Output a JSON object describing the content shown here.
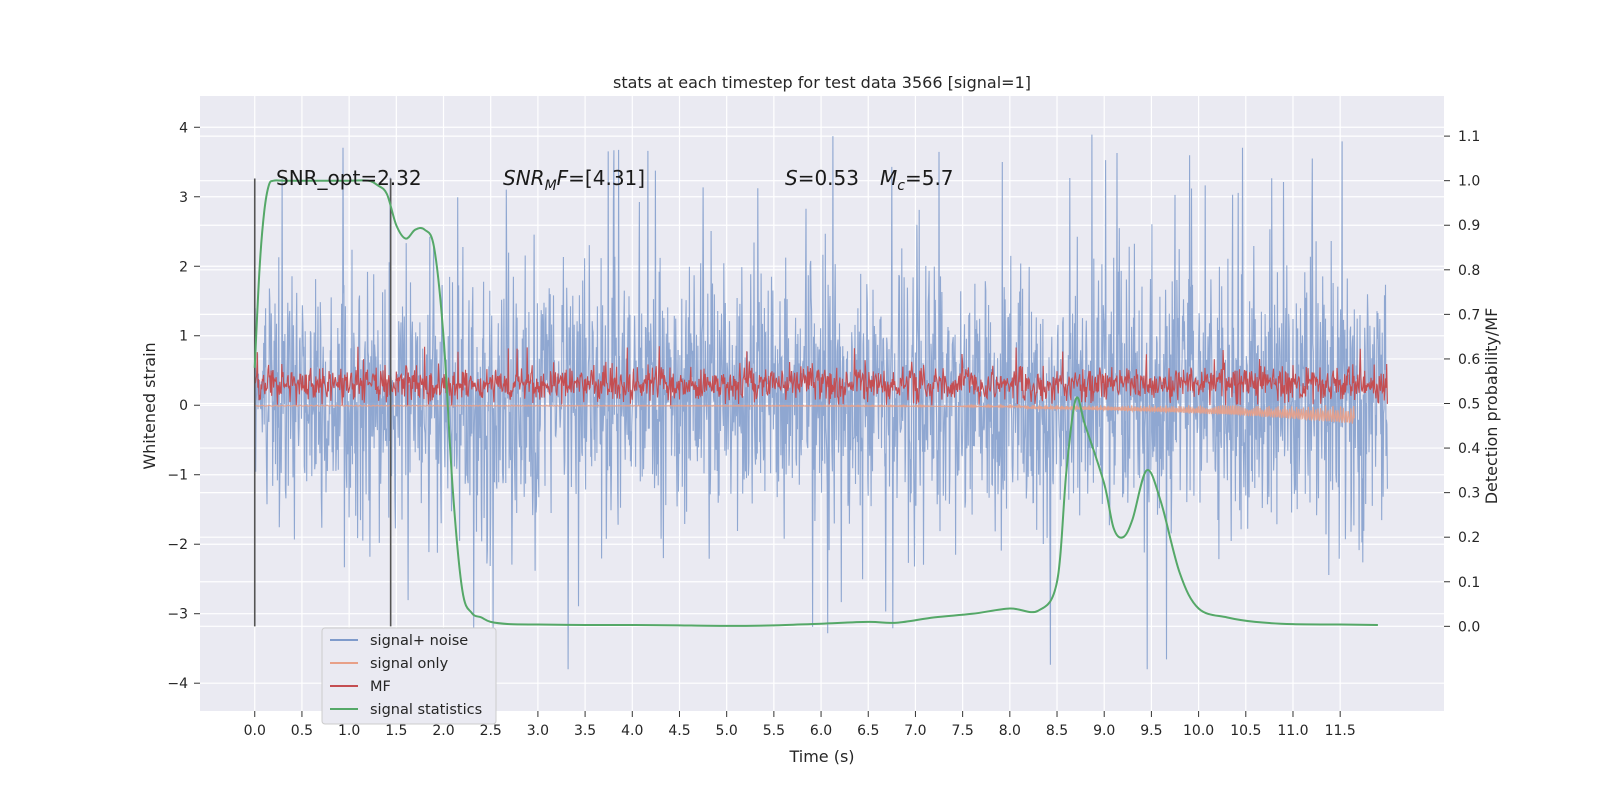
{
  "chart_data": {
    "type": "line",
    "title": "stats at each timestep for test data 3566 [signal=1]",
    "xlabel": "Time (s)",
    "ylabel_left": "Whitened strain",
    "ylabel_right": "Detection probability/MF",
    "xlim": [
      -0.58,
      12.6
    ],
    "ylim_left": [
      -4.4,
      4.45
    ],
    "ylim_right": [
      -0.19,
      1.19
    ],
    "x_ticks": [
      "0.0",
      "0.5",
      "1.0",
      "1.5",
      "2.0",
      "2.5",
      "3.0",
      "3.5",
      "4.0",
      "4.5",
      "5.0",
      "5.5",
      "6.0",
      "6.5",
      "7.0",
      "7.5",
      "8.0",
      "8.5",
      "9.0",
      "9.5",
      "10.0",
      "10.5",
      "11.0",
      "11.5"
    ],
    "y_ticks_left": [
      "4",
      "3",
      "2",
      "1",
      "0",
      "−1",
      "−2",
      "−3",
      "−4"
    ],
    "y_ticks_right": [
      "1.1",
      "1.0",
      "0.9",
      "0.8",
      "0.7",
      "0.6",
      "0.5",
      "0.4",
      "0.3",
      "0.2",
      "0.1",
      "0.0"
    ],
    "grid": true,
    "legend_position": "lower-left",
    "colors": {
      "signal_noise": "#7f9bcb",
      "signal_only": "#e8a088",
      "mf": "#c44e52",
      "signal_statistics": "#55a868",
      "vline": "#555555",
      "plot_bg": "#eaeaf2"
    },
    "annotations": {
      "snr_opt": "SNR_opt=2.32",
      "snr_mf_prefix": "SNR",
      "snr_mf_sub": "M",
      "snr_mf_mid": "F",
      "snr_mf_suffix": "=[4.31]",
      "s_sym": "S",
      "s_val": "=0.53",
      "mc_sym": "M",
      "mc_sub": "c",
      "mc_val": "=5.7"
    },
    "vertical_lines_x": [
      0.0,
      1.44
    ],
    "series": [
      {
        "name": "signal+ noise",
        "axis": "left",
        "kind": "noise",
        "x_range": [
          0.0,
          12.0
        ],
        "envelope": [
          -3.8,
          4.1
        ]
      },
      {
        "name": "signal only",
        "axis": "left",
        "kind": "waveform",
        "x_range": [
          0.0,
          11.65
        ],
        "min_amplitude": -0.25
      },
      {
        "name": "MF",
        "axis": "left",
        "kind": "noise",
        "x_range": [
          0.0,
          12.0
        ],
        "envelope": [
          0.0,
          0.85
        ]
      },
      {
        "name": "signal statistics",
        "axis": "right",
        "kind": "line",
        "x": [
          0.0,
          0.05,
          0.1,
          0.15,
          0.2,
          0.3,
          0.5,
          0.8,
          1.0,
          1.2,
          1.3,
          1.4,
          1.5,
          1.6,
          1.7,
          1.8,
          1.9,
          2.0,
          2.1,
          2.2,
          2.3,
          2.4,
          2.5,
          2.7,
          3.0,
          3.5,
          4.0,
          4.5,
          5.0,
          5.5,
          6.0,
          6.5,
          6.8,
          7.2,
          7.6,
          8.0,
          8.3,
          8.5,
          8.6,
          8.7,
          8.8,
          9.0,
          9.1,
          9.2,
          9.3,
          9.45,
          9.6,
          9.8,
          10.0,
          10.3,
          10.6,
          11.0,
          11.5,
          11.9
        ],
        "y": [
          0.58,
          0.8,
          0.93,
          0.99,
          1.0,
          1.0,
          1.0,
          1.0,
          1.0,
          1.0,
          0.99,
          0.97,
          0.9,
          0.87,
          0.89,
          0.89,
          0.85,
          0.65,
          0.3,
          0.08,
          0.03,
          0.02,
          0.01,
          0.005,
          0.004,
          0.003,
          0.003,
          0.002,
          0.001,
          0.002,
          0.006,
          0.01,
          0.008,
          0.02,
          0.028,
          0.04,
          0.035,
          0.1,
          0.35,
          0.51,
          0.45,
          0.32,
          0.22,
          0.2,
          0.24,
          0.35,
          0.28,
          0.12,
          0.04,
          0.02,
          0.01,
          0.005,
          0.004,
          0.003
        ]
      }
    ]
  }
}
